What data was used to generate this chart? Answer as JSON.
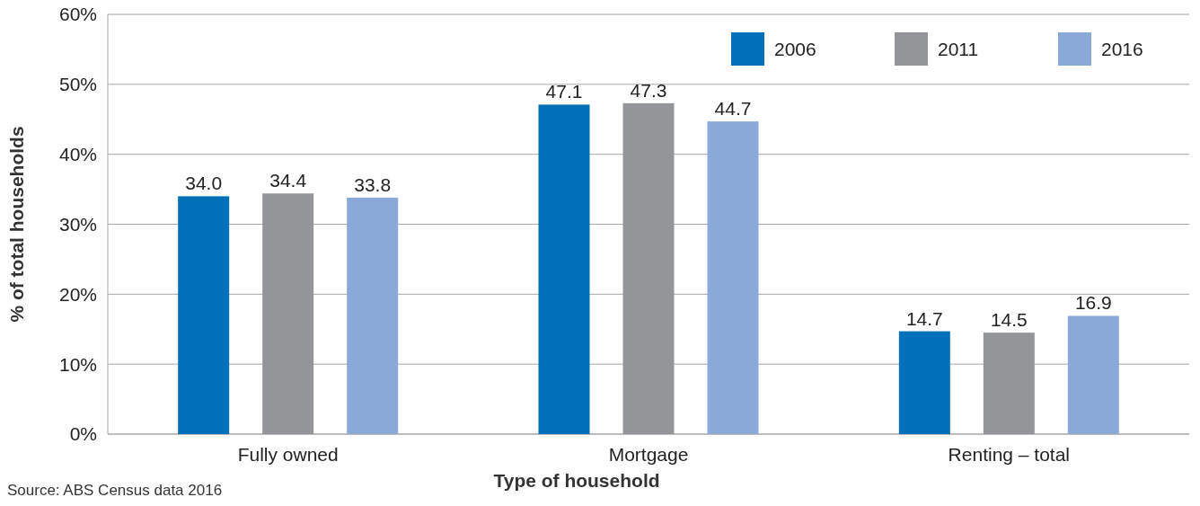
{
  "chart_data": {
    "type": "bar",
    "ylabel": "% of total households",
    "xlabel": "Type of household",
    "categories": [
      "Fully owned",
      "Mortgage",
      "Renting – total"
    ],
    "series": [
      {
        "name": "2006",
        "color": "#0070b8",
        "values": [
          34.0,
          47.1,
          14.7
        ],
        "value_labels": [
          "34.0",
          "47.1",
          "14.7"
        ]
      },
      {
        "name": "2011",
        "color": "#939598",
        "values": [
          34.4,
          47.3,
          14.5
        ],
        "value_labels": [
          "34.4",
          "47.3",
          "14.5"
        ]
      },
      {
        "name": "2016",
        "color": "#8aa9d8",
        "values": [
          33.8,
          44.7,
          16.9
        ],
        "value_labels": [
          "33.8",
          "44.7",
          "16.9"
        ]
      }
    ],
    "ylim": [
      0,
      60
    ],
    "yticks": [
      {
        "value": 0,
        "label": "0%"
      },
      {
        "value": 10,
        "label": "10%"
      },
      {
        "value": 20,
        "label": "20%"
      },
      {
        "value": 30,
        "label": "30%"
      },
      {
        "value": 40,
        "label": "40%"
      },
      {
        "value": 50,
        "label": "50%"
      },
      {
        "value": 60,
        "label": "60%"
      }
    ],
    "grid": "y",
    "legend": "top right",
    "annotations": [
      "Source: ABS Census data 2016"
    ]
  }
}
